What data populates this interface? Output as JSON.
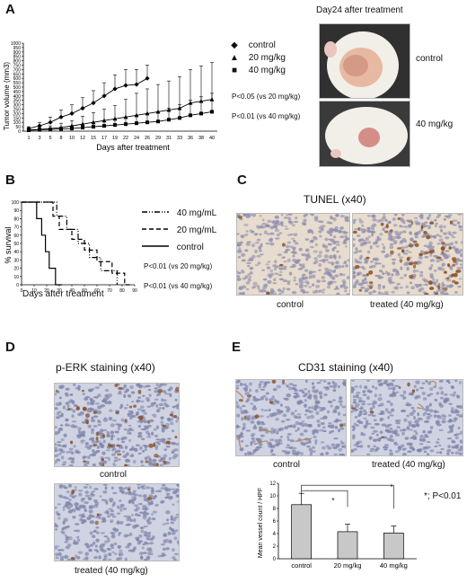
{
  "panels": {
    "A": {
      "letter": "A",
      "ylabel": "Tumor volume (mm3)",
      "xlabel": "Days after treatment",
      "legend": [
        "control",
        "20 mg/kg",
        "40 mg/kg"
      ],
      "pvalues": [
        "P<0.05 (vs 20 mg/kg)",
        "P<0.01 (vs 40 mg/kg)"
      ],
      "photo_title": "Day24 after treatment",
      "photo_labels": [
        "control",
        "40 mg/kg"
      ]
    },
    "B": {
      "letter": "B",
      "ylabel": "% survival",
      "xlabel": "Days after treatment",
      "legend": [
        "40 mg/mL",
        "20 mg/mL",
        "control"
      ],
      "pvalues": [
        "P<0.01 (vs 20 mg/kg)",
        "P<0.01 (vs 40 mg/kg)"
      ]
    },
    "C": {
      "letter": "C",
      "title": "TUNEL (x40)",
      "labels": [
        "control",
        "treated (40 mg/kg)"
      ]
    },
    "D": {
      "letter": "D",
      "title": "p-ERK staining (x40)",
      "labels": [
        "control",
        "treated (40 mg/kg)"
      ]
    },
    "E": {
      "letter": "E",
      "title": "CD31 staining (x40)",
      "labels": [
        "control",
        "treated (40 mg/kg)"
      ],
      "note": "*; P<0.01",
      "star": "*"
    }
  },
  "chart_data": [
    {
      "type": "line",
      "panel": "A",
      "xlabel": "Days after treatment",
      "ylabel": "Tumor volume (mm3)",
      "x": [
        1,
        3,
        5,
        8,
        10,
        12,
        15,
        17,
        19,
        22,
        24,
        26,
        29,
        31,
        33,
        36,
        38,
        40
      ],
      "xticks": [
        1,
        3,
        5,
        8,
        10,
        12,
        15,
        17,
        19,
        22,
        24,
        26,
        29,
        31,
        33,
        36,
        38,
        40
      ],
      "ylim": [
        0,
        1000
      ],
      "yticks": [
        0,
        50,
        100,
        150,
        200,
        250,
        300,
        350,
        400,
        450,
        500,
        550,
        600,
        650,
        700,
        750,
        800,
        850,
        900,
        950,
        1000
      ],
      "series": [
        {
          "name": "control",
          "marker": "diamond",
          "values": [
            30,
            60,
            100,
            160,
            200,
            260,
            320,
            400,
            480,
            520,
            530,
            600,
            null,
            null,
            null,
            null,
            null,
            null
          ],
          "errors": [
            20,
            40,
            60,
            80,
            100,
            120,
            140,
            150,
            160,
            180,
            170,
            150,
            null,
            null,
            null,
            null,
            null,
            null
          ]
        },
        {
          "name": "20 mg/kg",
          "marker": "triangle",
          "values": [
            15,
            20,
            30,
            40,
            60,
            80,
            100,
            120,
            140,
            160,
            180,
            200,
            220,
            240,
            260,
            320,
            340,
            360
          ],
          "errors": [
            10,
            20,
            30,
            50,
            60,
            90,
            110,
            130,
            150,
            200,
            250,
            280,
            310,
            330,
            360,
            380,
            400,
            420
          ]
        },
        {
          "name": "40 mg/kg",
          "marker": "square",
          "values": [
            10,
            15,
            20,
            25,
            30,
            40,
            50,
            60,
            70,
            80,
            90,
            100,
            110,
            130,
            150,
            180,
            200,
            220
          ],
          "errors": [
            8,
            10,
            15,
            20,
            25,
            30,
            40,
            50,
            60,
            70,
            80,
            100,
            110,
            130,
            150,
            170,
            190,
            210
          ]
        }
      ]
    },
    {
      "type": "line",
      "panel": "B",
      "step": true,
      "xlabel": "Days after treatment",
      "ylabel": "% survival",
      "xlim": [
        0,
        90
      ],
      "xticks": [
        0,
        10,
        20,
        30,
        40,
        50,
        60,
        70,
        80,
        90
      ],
      "ylim": [
        0,
        100
      ],
      "yticks": [
        0,
        10,
        20,
        30,
        40,
        50,
        60,
        70,
        80,
        90,
        100
      ],
      "series": [
        {
          "name": "40 mg/mL",
          "style": "dashdot",
          "points": [
            [
              0,
              100
            ],
            [
              28,
              100
            ],
            [
              28,
              83
            ],
            [
              36,
              83
            ],
            [
              36,
              67
            ],
            [
              45,
              67
            ],
            [
              45,
              50
            ],
            [
              54,
              50
            ],
            [
              54,
              33
            ],
            [
              63,
              33
            ],
            [
              63,
              17
            ],
            [
              76,
              17
            ],
            [
              76,
              0
            ]
          ]
        },
        {
          "name": "20 mg/mL",
          "style": "dashed",
          "points": [
            [
              0,
              100
            ],
            [
              25,
              100
            ],
            [
              25,
              83
            ],
            [
              30,
              83
            ],
            [
              30,
              67
            ],
            [
              40,
              67
            ],
            [
              40,
              55
            ],
            [
              50,
              55
            ],
            [
              50,
              42
            ],
            [
              60,
              42
            ],
            [
              60,
              28
            ],
            [
              72,
              28
            ],
            [
              72,
              14
            ],
            [
              82,
              14
            ],
            [
              82,
              0
            ],
            [
              86,
              0
            ]
          ]
        },
        {
          "name": "control",
          "style": "solid",
          "points": [
            [
              0,
              100
            ],
            [
              12,
              100
            ],
            [
              12,
              80
            ],
            [
              16,
              80
            ],
            [
              16,
              60
            ],
            [
              19,
              60
            ],
            [
              19,
              40
            ],
            [
              22,
              40
            ],
            [
              22,
              20
            ],
            [
              27,
              20
            ],
            [
              27,
              0
            ],
            [
              32,
              0
            ]
          ]
        }
      ]
    },
    {
      "type": "bar",
      "panel": "E",
      "categories": [
        "control",
        "20 mg/kg",
        "40 mg/kg"
      ],
      "values": [
        8.6,
        4.3,
        4.1
      ],
      "errors": [
        1.8,
        1.2,
        1.1
      ],
      "ylabel": "Mean vessel count / HPF",
      "ylim": [
        0,
        12
      ],
      "yticks": [
        0,
        2,
        4,
        6,
        8,
        10,
        12
      ]
    }
  ],
  "colors": {
    "ihc_bg": "#e7dccd",
    "ihc_nuclei": "#8f8fb1",
    "ihc_brown": "#8a4f25",
    "skin": "#e8b9a2",
    "fur": "#f2efe9",
    "bar_fill": "#c8c8c8"
  }
}
